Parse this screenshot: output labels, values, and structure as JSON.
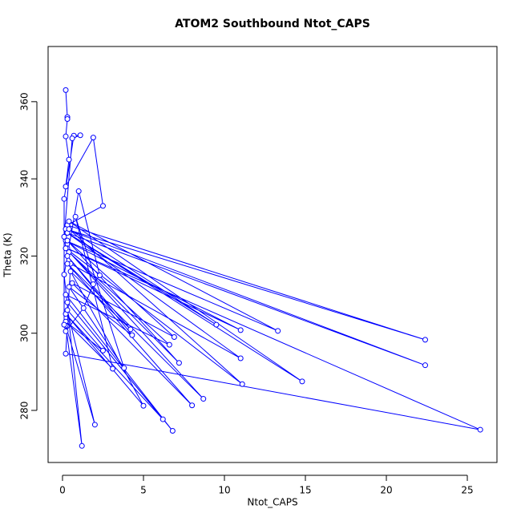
{
  "chart_data": {
    "type": "line",
    "title": "ATOM2 Southbound Ntot_CAPS",
    "x_label": "Ntot_CAPS",
    "y_label": "Theta (K)",
    "color": "#0000ff",
    "markers": "open-circle",
    "x": [
      0.2,
      0.3,
      0.3,
      0.2,
      0.4,
      0.2,
      1.9,
      2.5,
      0.3,
      22.4,
      0.2,
      22.4,
      0.3,
      14.8,
      0.4,
      13.3,
      0.2,
      11.0,
      0.3,
      25.8,
      0.2,
      0.5,
      11.0,
      0.3,
      9.5,
      0.4,
      11.1,
      0.2,
      8.7,
      0.3,
      8.0,
      0.6,
      6.9,
      0.3,
      7.2,
      0.4,
      6.6,
      0.2,
      6.8,
      0.3,
      6.2,
      0.2,
      5.0,
      0.5,
      4.2,
      0.3,
      4.3,
      0.4,
      3.8,
      0.8,
      3.1,
      0.2,
      2.5,
      0.3,
      2.0,
      0.2,
      1.2,
      0.1,
      1.0,
      2.3,
      1.9,
      1.3,
      0.2,
      0.1,
      0.1,
      0.7,
      1.1,
      0.6,
      0.1,
      0.2
    ],
    "values": [
      363,
      356,
      355.5,
      351,
      345,
      338,
      350.7,
      333,
      328,
      298.3,
      327,
      291.7,
      326,
      287.5,
      329,
      300.6,
      324,
      300.8,
      322,
      275,
      294.7,
      318,
      293.5,
      326,
      302.2,
      327,
      286.8,
      322,
      283,
      318,
      281.3,
      313,
      299,
      324,
      292.3,
      321,
      297,
      310,
      274.7,
      308,
      277.7,
      305,
      281.2,
      316,
      301,
      320,
      299.5,
      312,
      291,
      330.2,
      290.8,
      303,
      295.5,
      306,
      276.3,
      302,
      270.8,
      315.2,
      336.8,
      315,
      312.7,
      306.5,
      300.5,
      302.2,
      334.8,
      351.2,
      351.3,
      350.5,
      325,
      322
    ],
    "xlim": [
      -0.89,
      26.83
    ],
    "ylim": [
      266.5,
      374.3
    ],
    "xticks": [
      0,
      5,
      10,
      15,
      20,
      25
    ],
    "yticks": [
      280,
      300,
      320,
      340,
      360
    ]
  }
}
